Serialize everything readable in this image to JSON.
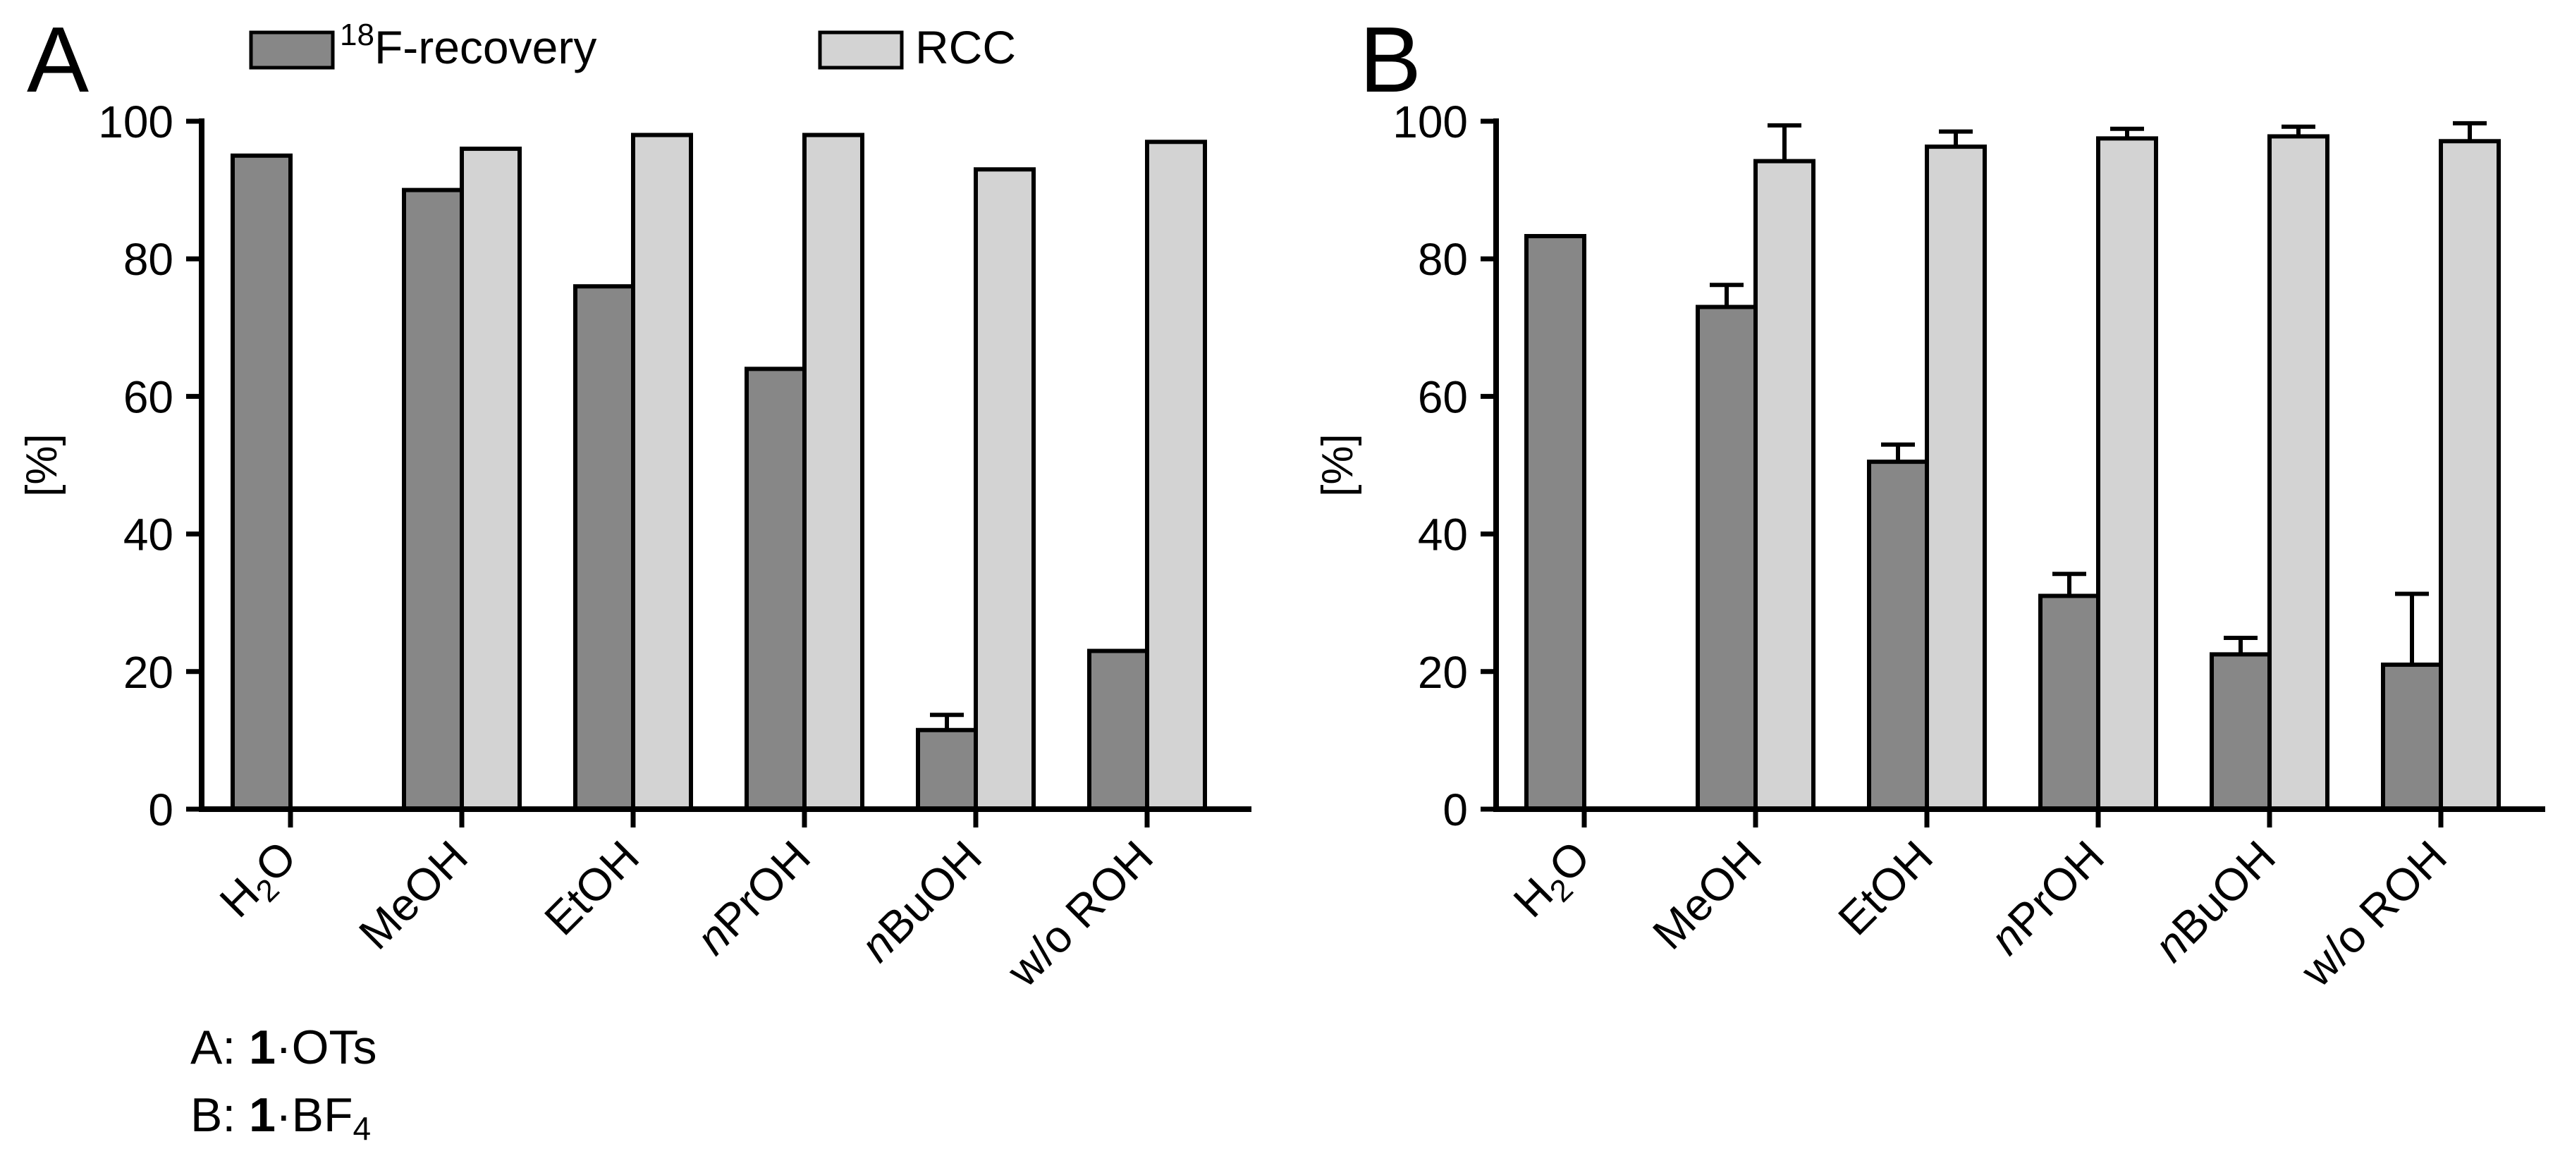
{
  "legend": {
    "recovery_sup": "18",
    "recovery_label": "F-recovery",
    "rcc_label": "RCC"
  },
  "colors": {
    "recovery": "#878787",
    "rcc": "#d3d3d3",
    "axis": "#000000"
  },
  "captions": {
    "a_prefix": "A: ",
    "a_bold": "1",
    "a_rest": "·OTs",
    "b_prefix": "B: ",
    "b_bold": "1",
    "b_rest": "·BF",
    "b_sub": "4"
  },
  "chart_data": [
    {
      "panel": "A",
      "type": "bar",
      "ylabel": "[%]",
      "ylim": [
        0,
        100
      ],
      "yticks": [
        0,
        20,
        40,
        60,
        80,
        100
      ],
      "categories": [
        {
          "pre": "H",
          "sub": "2",
          "post": "O",
          "italic": ""
        },
        {
          "pre": "MeOH",
          "sub": "",
          "post": "",
          "italic": ""
        },
        {
          "pre": "EtOH",
          "sub": "",
          "post": "",
          "italic": ""
        },
        {
          "pre": "PrOH",
          "sub": "",
          "post": "",
          "italic": "n"
        },
        {
          "pre": "BuOH",
          "sub": "",
          "post": "",
          "italic": "n"
        },
        {
          "pre": "w/o ROH",
          "sub": "",
          "post": "",
          "italic": ""
        }
      ],
      "series": [
        {
          "name": "18F-recovery",
          "values": [
            95,
            90,
            76,
            64,
            11.5,
            23
          ],
          "errors": [
            null,
            null,
            null,
            null,
            2.2,
            null
          ]
        },
        {
          "name": "RCC",
          "values": [
            null,
            96,
            98,
            98,
            93,
            97
          ],
          "errors": [
            null,
            null,
            null,
            null,
            null,
            null
          ]
        }
      ]
    },
    {
      "panel": "B",
      "type": "bar",
      "ylabel": "[%]",
      "ylim": [
        0,
        100
      ],
      "yticks": [
        0,
        20,
        40,
        60,
        80,
        100
      ],
      "categories": [
        {
          "pre": "H",
          "sub": "2",
          "post": "O",
          "italic": ""
        },
        {
          "pre": "MeOH",
          "sub": "",
          "post": "",
          "italic": ""
        },
        {
          "pre": "EtOH",
          "sub": "",
          "post": "",
          "italic": ""
        },
        {
          "pre": "PrOH",
          "sub": "",
          "post": "",
          "italic": "n"
        },
        {
          "pre": "BuOH",
          "sub": "",
          "post": "",
          "italic": "n"
        },
        {
          "pre": "w/o ROH",
          "sub": "",
          "post": "",
          "italic": ""
        }
      ],
      "series": [
        {
          "name": "18F-recovery",
          "values": [
            83.3,
            73,
            50.5,
            31,
            22.5,
            21
          ],
          "errors": [
            null,
            3.2,
            2.5,
            3.2,
            2.4,
            10.3
          ]
        },
        {
          "name": "RCC",
          "values": [
            null,
            94.2,
            96.3,
            97.5,
            97.8,
            97.1
          ],
          "errors": [
            null,
            5.2,
            2.2,
            1.4,
            1.4,
            2.6
          ]
        }
      ]
    }
  ]
}
